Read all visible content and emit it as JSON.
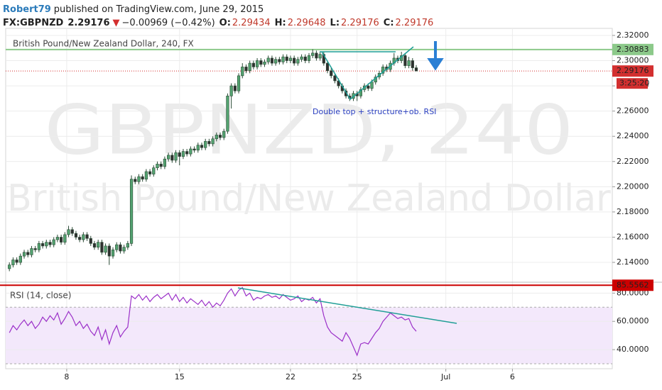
{
  "header": {
    "author": "Robert79",
    "published": "published on TradingView.com, June 29, 2015",
    "symbol": "FX:GBPNZD",
    "last": "2.29176",
    "direction": "▼",
    "change": "−0.00969 (−0.42%)",
    "ohlc": [
      {
        "label": "O:",
        "value": "2.29434"
      },
      {
        "label": "H:",
        "value": "2.29648"
      },
      {
        "label": "L:",
        "value": "2.29176"
      },
      {
        "label": "C:",
        "value": "2.29176"
      }
    ]
  },
  "chart_data": [
    {
      "type": "candlestick",
      "title": "British Pound/New Zealand Dollar, 240, FX",
      "watermark": [
        "GBPNZD, 240",
        "British Pound/New Zealand Dollar"
      ],
      "annotation": "Double top + structure+ob. RSI",
      "countdown": "3:25:20",
      "xlim": [
        -1,
        163
      ],
      "xticks": [
        {
          "value": 15.5,
          "label": "8"
        },
        {
          "value": 46,
          "label": "15"
        },
        {
          "value": 76,
          "label": "22"
        },
        {
          "value": 94,
          "label": "25"
        },
        {
          "value": 118,
          "label": "Jul"
        },
        {
          "value": 136,
          "label": "6"
        }
      ],
      "ylim": [
        2.1254,
        2.3256
      ],
      "yticks": [
        {
          "value": 2.14,
          "label": "2.14000"
        },
        {
          "value": 2.16,
          "label": "2.16000"
        },
        {
          "value": 2.18,
          "label": "2.18000"
        },
        {
          "value": 2.2,
          "label": "2.20000"
        },
        {
          "value": 2.22,
          "label": "2.22000"
        },
        {
          "value": 2.24,
          "label": "2.24000"
        },
        {
          "value": 2.26,
          "label": "2.26000"
        },
        {
          "value": 2.28,
          "label": "2.28000"
        },
        {
          "value": 2.3,
          "label": "2.30000"
        },
        {
          "value": 2.32,
          "label": "2.32000"
        }
      ],
      "grid": true,
      "up_color": "#53a370",
      "down_color": "#2f2f2f",
      "wick_color": "#2a4a35",
      "last_price_line": {
        "value": 2.29176,
        "color": "#d32f2f"
      },
      "hlines": [
        {
          "value": 2.30883,
          "color": "#8cc98a"
        }
      ],
      "ohlc": [
        [
          2.135,
          2.14,
          2.133,
          2.138
        ],
        [
          2.138,
          2.144,
          2.136,
          2.142
        ],
        [
          2.142,
          2.144,
          2.138,
          2.14
        ],
        [
          2.14,
          2.147,
          2.138,
          2.145
        ],
        [
          2.145,
          2.15,
          2.143,
          2.148
        ],
        [
          2.148,
          2.15,
          2.144,
          2.146
        ],
        [
          2.146,
          2.153,
          2.144,
          2.151
        ],
        [
          2.151,
          2.153,
          2.148,
          2.15
        ],
        [
          2.15,
          2.157,
          2.148,
          2.155
        ],
        [
          2.155,
          2.157,
          2.151,
          2.153
        ],
        [
          2.153,
          2.158,
          2.151,
          2.156
        ],
        [
          2.156,
          2.158,
          2.152,
          2.154
        ],
        [
          2.154,
          2.16,
          2.152,
          2.158
        ],
        [
          2.158,
          2.162,
          2.156,
          2.16
        ],
        [
          2.16,
          2.162,
          2.154,
          2.156
        ],
        [
          2.156,
          2.164,
          2.154,
          2.162
        ],
        [
          2.162,
          2.169,
          2.16,
          2.166
        ],
        [
          2.166,
          2.168,
          2.161,
          2.163
        ],
        [
          2.163,
          2.165,
          2.158,
          2.16
        ],
        [
          2.16,
          2.162,
          2.156,
          2.158
        ],
        [
          2.158,
          2.164,
          2.156,
          2.162
        ],
        [
          2.162,
          2.164,
          2.157,
          2.159
        ],
        [
          2.159,
          2.161,
          2.153,
          2.155
        ],
        [
          2.155,
          2.157,
          2.15,
          2.152
        ],
        [
          2.152,
          2.158,
          2.15,
          2.156
        ],
        [
          2.156,
          2.158,
          2.146,
          2.148
        ],
        [
          2.148,
          2.155,
          2.146,
          2.153
        ],
        [
          2.153,
          2.155,
          2.138,
          2.145
        ],
        [
          2.145,
          2.152,
          2.143,
          2.15
        ],
        [
          2.15,
          2.156,
          2.148,
          2.154
        ],
        [
          2.154,
          2.156,
          2.147,
          2.149
        ],
        [
          2.149,
          2.154,
          2.147,
          2.152
        ],
        [
          2.152,
          2.157,
          2.15,
          2.155
        ],
        [
          2.155,
          2.209,
          2.153,
          2.206
        ],
        [
          2.206,
          2.208,
          2.202,
          2.204
        ],
        [
          2.204,
          2.21,
          2.202,
          2.208
        ],
        [
          2.208,
          2.21,
          2.204,
          2.206
        ],
        [
          2.206,
          2.214,
          2.204,
          2.212
        ],
        [
          2.212,
          2.214,
          2.208,
          2.21
        ],
        [
          2.21,
          2.217,
          2.208,
          2.215
        ],
        [
          2.215,
          2.22,
          2.213,
          2.218
        ],
        [
          2.218,
          2.22,
          2.214,
          2.216
        ],
        [
          2.216,
          2.224,
          2.214,
          2.222
        ],
        [
          2.222,
          2.227,
          2.22,
          2.225
        ],
        [
          2.225,
          2.227,
          2.219,
          2.221
        ],
        [
          2.221,
          2.229,
          2.219,
          2.227
        ],
        [
          2.227,
          2.229,
          2.217,
          2.224
        ],
        [
          2.224,
          2.23,
          2.222,
          2.228
        ],
        [
          2.228,
          2.23,
          2.224,
          2.226
        ],
        [
          2.226,
          2.232,
          2.224,
          2.23
        ],
        [
          2.23,
          2.232,
          2.227,
          2.229
        ],
        [
          2.229,
          2.235,
          2.227,
          2.233
        ],
        [
          2.233,
          2.235,
          2.229,
          2.231
        ],
        [
          2.231,
          2.238,
          2.229,
          2.236
        ],
        [
          2.236,
          2.238,
          2.232,
          2.234
        ],
        [
          2.234,
          2.24,
          2.232,
          2.238
        ],
        [
          2.238,
          2.243,
          2.236,
          2.241
        ],
        [
          2.241,
          2.243,
          2.237,
          2.239
        ],
        [
          2.239,
          2.246,
          2.237,
          2.244
        ],
        [
          2.244,
          2.274,
          2.242,
          2.272
        ],
        [
          2.272,
          2.282,
          2.262,
          2.28
        ],
        [
          2.28,
          2.282,
          2.274,
          2.276
        ],
        [
          2.276,
          2.29,
          2.274,
          2.288
        ],
        [
          2.288,
          2.298,
          2.286,
          2.295
        ],
        [
          2.295,
          2.297,
          2.29,
          2.292
        ],
        [
          2.292,
          2.3,
          2.29,
          2.298
        ],
        [
          2.298,
          2.3,
          2.293,
          2.295
        ],
        [
          2.295,
          2.302,
          2.293,
          2.3
        ],
        [
          2.3,
          2.302,
          2.295,
          2.297
        ],
        [
          2.297,
          2.301,
          2.295,
          2.299
        ],
        [
          2.299,
          2.304,
          2.297,
          2.302
        ],
        [
          2.302,
          2.304,
          2.296,
          2.298
        ],
        [
          2.298,
          2.303,
          2.296,
          2.301
        ],
        [
          2.301,
          2.303,
          2.297,
          2.299
        ],
        [
          2.299,
          2.305,
          2.297,
          2.303
        ],
        [
          2.303,
          2.305,
          2.298,
          2.3
        ],
        [
          2.3,
          2.304,
          2.298,
          2.302
        ],
        [
          2.302,
          2.304,
          2.296,
          2.298
        ],
        [
          2.298,
          2.303,
          2.296,
          2.301
        ],
        [
          2.301,
          2.305,
          2.299,
          2.303
        ],
        [
          2.303,
          2.305,
          2.298,
          2.3
        ],
        [
          2.3,
          2.306,
          2.298,
          2.304
        ],
        [
          2.304,
          2.309,
          2.302,
          2.306
        ],
        [
          2.306,
          2.308,
          2.3,
          2.302
        ],
        [
          2.302,
          2.307,
          2.3,
          2.305
        ],
        [
          2.305,
          2.307,
          2.296,
          2.298
        ],
        [
          2.298,
          2.3,
          2.29,
          2.292
        ],
        [
          2.292,
          2.294,
          2.286,
          2.288
        ],
        [
          2.288,
          2.29,
          2.282,
          2.284
        ],
        [
          2.284,
          2.286,
          2.278,
          2.28
        ],
        [
          2.28,
          2.282,
          2.274,
          2.276
        ],
        [
          2.276,
          2.278,
          2.27,
          2.272
        ],
        [
          2.272,
          2.274,
          2.268,
          2.27
        ],
        [
          2.27,
          2.276,
          2.268,
          2.274
        ],
        [
          2.274,
          2.276,
          2.268,
          2.272
        ],
        [
          2.272,
          2.279,
          2.27,
          2.277
        ],
        [
          2.277,
          2.282,
          2.275,
          2.28
        ],
        [
          2.28,
          2.282,
          2.276,
          2.278
        ],
        [
          2.278,
          2.285,
          2.276,
          2.283
        ],
        [
          2.283,
          2.289,
          2.281,
          2.287
        ],
        [
          2.287,
          2.292,
          2.285,
          2.29
        ],
        [
          2.29,
          2.297,
          2.288,
          2.295
        ],
        [
          2.295,
          2.297,
          2.291,
          2.293
        ],
        [
          2.293,
          2.3,
          2.291,
          2.298
        ],
        [
          2.298,
          2.306,
          2.296,
          2.302
        ],
        [
          2.302,
          2.304,
          2.298,
          2.3
        ],
        [
          2.3,
          2.307,
          2.298,
          2.304
        ],
        [
          2.304,
          2.306,
          2.294,
          2.296
        ],
        [
          2.296,
          2.303,
          2.294,
          2.3
        ],
        [
          2.3,
          2.302,
          2.292,
          2.29434
        ],
        [
          2.29434,
          2.29648,
          2.29176,
          2.29176
        ]
      ]
    },
    {
      "type": "line",
      "title": "RSI (14, close)",
      "color": "#9b30c8",
      "band_color": "#f3e8fb",
      "xlim": [
        -1,
        163
      ],
      "ylim": [
        26.5,
        86.2
      ],
      "yticks": [
        {
          "value": 40,
          "label": "40.0000"
        },
        {
          "value": 60,
          "label": "60.0000"
        },
        {
          "value": 80,
          "label": "80.0000"
        }
      ],
      "bands": [
        70,
        30
      ],
      "hlines": [
        {
          "value": 85.5562,
          "color": "#cc0000"
        }
      ],
      "values": [
        52,
        57,
        54,
        58,
        61,
        57,
        60,
        55,
        58,
        63,
        60,
        64,
        61,
        66,
        58,
        62,
        67,
        63,
        57,
        60,
        55,
        58,
        53,
        50,
        56,
        47,
        54,
        44,
        52,
        57,
        49,
        53,
        56,
        78,
        76,
        79,
        75,
        78,
        74,
        77,
        79,
        76,
        78,
        80,
        75,
        79,
        74,
        77,
        73,
        76,
        74,
        72,
        75,
        71,
        74,
        70,
        73,
        71,
        75,
        80,
        83,
        78,
        82,
        84,
        78,
        80,
        75,
        77,
        76,
        78,
        79,
        77,
        78,
        76,
        79,
        77,
        75,
        76,
        78,
        74,
        76,
        75,
        77,
        73,
        76,
        64,
        56,
        52,
        50,
        48,
        46,
        52,
        48,
        42,
        36,
        44,
        45,
        44,
        48,
        52,
        55,
        60,
        63,
        66,
        64,
        62,
        63,
        61,
        62,
        56,
        53
      ]
    }
  ]
}
